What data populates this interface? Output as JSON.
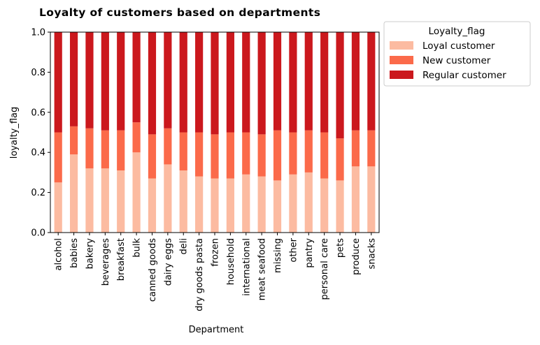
{
  "chart_data": {
    "type": "bar",
    "stacked": true,
    "title": "Loyalty of customers based on departments",
    "xlabel": "Department",
    "ylabel": "loyalty_flag",
    "ylim": [
      0,
      1.0
    ],
    "yticks": [
      "0.0",
      "0.2",
      "0.4",
      "0.6",
      "0.8",
      "1.0"
    ],
    "grid": false,
    "legend": {
      "title": "Loyalty_flag",
      "placement": "outside-top-right"
    },
    "categories": [
      "alcohol",
      "babies",
      "bakery",
      "beverages",
      "breakfast",
      "bulk",
      "canned goods",
      "dairy eggs",
      "deli",
      "dry goods pasta",
      "frozen",
      "household",
      "international",
      "meat seafood",
      "missing",
      "other",
      "pantry",
      "personal care",
      "pets",
      "produce",
      "snacks"
    ],
    "series": [
      {
        "name": "Loyal customer",
        "color": "#fcbba1",
        "values": [
          0.25,
          0.39,
          0.32,
          0.32,
          0.31,
          0.4,
          0.27,
          0.34,
          0.31,
          0.28,
          0.27,
          0.27,
          0.29,
          0.28,
          0.26,
          0.29,
          0.3,
          0.27,
          0.26,
          0.33,
          0.33
        ]
      },
      {
        "name": "New customer",
        "color": "#fb6a4a",
        "values": [
          0.25,
          0.14,
          0.2,
          0.19,
          0.2,
          0.15,
          0.22,
          0.18,
          0.19,
          0.22,
          0.22,
          0.23,
          0.21,
          0.21,
          0.25,
          0.21,
          0.21,
          0.23,
          0.21,
          0.18,
          0.18
        ]
      },
      {
        "name": "Regular customer",
        "color": "#cb181d",
        "values": [
          0.5,
          0.47,
          0.48,
          0.49,
          0.49,
          0.45,
          0.51,
          0.48,
          0.5,
          0.5,
          0.51,
          0.5,
          0.5,
          0.51,
          0.49,
          0.5,
          0.49,
          0.5,
          0.53,
          0.49,
          0.49
        ]
      }
    ]
  }
}
